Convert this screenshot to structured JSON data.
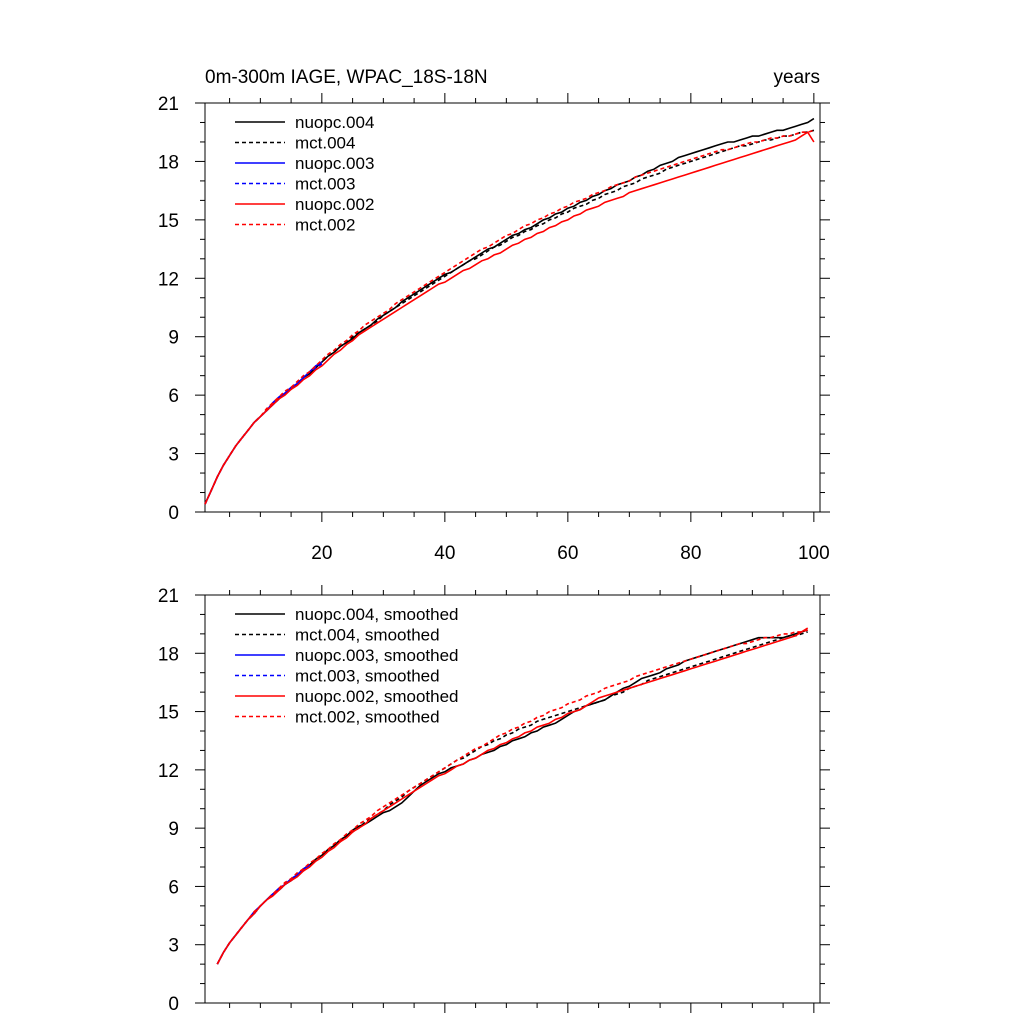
{
  "chart_data": [
    {
      "type": "line",
      "title": "0m-300m IAGE, WPAC_18S-18N",
      "right_title": "years",
      "xlim": [
        1,
        101
      ],
      "ylim": [
        0,
        21
      ],
      "xticks": [
        20,
        40,
        60,
        80,
        100
      ],
      "yticks": [
        0,
        3,
        6,
        9,
        12,
        15,
        18,
        21
      ],
      "show_xtick_labels": true,
      "legend": [
        "nuopc.004",
        "mct.004",
        "nuopc.003",
        "mct.003",
        "nuopc.002",
        "mct.002"
      ],
      "series": [
        {
          "name": "nuopc.004",
          "color": "#000000",
          "dash": "solid",
          "x_start": 1,
          "values": [
            0.4,
            1.1,
            1.8,
            2.4,
            2.9,
            3.4,
            3.8,
            4.2,
            4.6,
            4.9,
            5.2,
            5.5,
            5.8,
            6.1,
            6.3,
            6.6,
            6.9,
            7.1,
            7.4,
            7.7,
            8.0,
            8.2,
            8.5,
            8.7,
            8.9,
            9.2,
            9.4,
            9.6,
            9.9,
            10.1,
            10.3,
            10.5,
            10.8,
            11.0,
            11.2,
            11.4,
            11.6,
            11.8,
            12.0,
            12.2,
            12.3,
            12.5,
            12.7,
            12.9,
            13.1,
            13.3,
            13.5,
            13.6,
            13.8,
            14.0,
            14.2,
            14.3,
            14.5,
            14.6,
            14.8,
            15.0,
            15.1,
            15.3,
            15.4,
            15.6,
            15.7,
            15.9,
            16.0,
            16.2,
            16.3,
            16.5,
            16.6,
            16.8,
            16.9,
            17.0,
            17.2,
            17.3,
            17.5,
            17.6,
            17.8,
            17.9,
            18.0,
            18.2,
            18.3,
            18.4,
            18.5,
            18.6,
            18.7,
            18.8,
            18.9,
            19.0,
            19.0,
            19.1,
            19.2,
            19.3,
            19.3,
            19.4,
            19.5,
            19.6,
            19.6,
            19.7,
            19.8,
            19.9,
            20.0,
            20.2
          ]
        },
        {
          "name": "mct.004",
          "color": "#000000",
          "dash": "dashed",
          "x_start": 1,
          "values": [
            0.4,
            1.1,
            1.8,
            2.4,
            2.9,
            3.4,
            3.8,
            4.2,
            4.6,
            4.9,
            5.2,
            5.5,
            5.8,
            6.1,
            6.4,
            6.6,
            6.9,
            7.2,
            7.4,
            7.7,
            8.0,
            8.2,
            8.5,
            8.7,
            9.0,
            9.2,
            9.4,
            9.6,
            9.8,
            10.1,
            10.3,
            10.5,
            10.7,
            10.9,
            11.1,
            11.3,
            11.5,
            11.7,
            11.9,
            12.1,
            12.3,
            12.5,
            12.7,
            12.9,
            13.0,
            13.2,
            13.4,
            13.6,
            13.7,
            13.9,
            14.1,
            14.2,
            14.4,
            14.5,
            14.7,
            14.8,
            15.0,
            15.1,
            15.3,
            15.4,
            15.6,
            15.7,
            15.8,
            16.0,
            16.1,
            16.3,
            16.4,
            16.5,
            16.7,
            16.8,
            16.9,
            17.1,
            17.2,
            17.3,
            17.4,
            17.6,
            17.7,
            17.8,
            17.9,
            18.0,
            18.1,
            18.2,
            18.3,
            18.4,
            18.5,
            18.6,
            18.7,
            18.8,
            18.8,
            18.9,
            19.0,
            19.1,
            19.1,
            19.2,
            19.3,
            19.3,
            19.4,
            19.5,
            19.5,
            19.6
          ]
        },
        {
          "name": "nuopc.003",
          "color": "#0000ff",
          "dash": "solid",
          "x_start": 1,
          "values": [
            0.4,
            1.1,
            1.8,
            2.4,
            2.9,
            3.4,
            3.8,
            4.2,
            4.6,
            4.9,
            5.2,
            5.6,
            5.9,
            6.1,
            6.4,
            6.6,
            6.9,
            7.2,
            7.5,
            7.7
          ]
        },
        {
          "name": "mct.003",
          "color": "#0000ff",
          "dash": "dashed",
          "x_start": 1,
          "values": [
            0.4,
            1.1,
            1.8,
            2.4,
            2.9,
            3.4,
            3.8,
            4.2,
            4.6,
            4.9,
            5.2,
            5.5,
            5.8,
            6.1,
            6.3,
            6.6,
            6.9,
            7.2,
            7.4,
            7.6
          ]
        },
        {
          "name": "nuopc.002",
          "color": "#ff0000",
          "dash": "solid",
          "x_start": 1,
          "values": [
            0.4,
            1.1,
            1.8,
            2.4,
            2.9,
            3.4,
            3.8,
            4.2,
            4.6,
            4.9,
            5.2,
            5.5,
            5.8,
            6.0,
            6.3,
            6.5,
            6.8,
            7.0,
            7.3,
            7.5,
            7.8,
            8.1,
            8.3,
            8.6,
            8.8,
            9.1,
            9.3,
            9.5,
            9.7,
            9.9,
            10.1,
            10.3,
            10.5,
            10.7,
            10.9,
            11.1,
            11.3,
            11.5,
            11.7,
            11.8,
            12.0,
            12.2,
            12.4,
            12.5,
            12.7,
            12.9,
            13.0,
            13.2,
            13.3,
            13.5,
            13.7,
            13.8,
            14.0,
            14.1,
            14.3,
            14.4,
            14.6,
            14.7,
            14.9,
            15.0,
            15.2,
            15.3,
            15.5,
            15.6,
            15.7,
            15.9,
            16.0,
            16.1,
            16.2,
            16.4,
            16.5,
            16.6,
            16.7,
            16.8,
            16.9,
            17.0,
            17.1,
            17.2,
            17.3,
            17.4,
            17.5,
            17.6,
            17.7,
            17.8,
            17.9,
            18.0,
            18.1,
            18.2,
            18.3,
            18.4,
            18.5,
            18.6,
            18.7,
            18.8,
            18.9,
            19.0,
            19.1,
            19.3,
            19.5,
            19.0
          ]
        },
        {
          "name": "mct.002",
          "color": "#ff0000",
          "dash": "dashed",
          "x_start": 1,
          "values": [
            0.4,
            1.1,
            1.8,
            2.4,
            2.9,
            3.4,
            3.8,
            4.2,
            4.6,
            4.9,
            5.3,
            5.6,
            5.9,
            6.2,
            6.4,
            6.7,
            7.0,
            7.2,
            7.5,
            7.8,
            8.1,
            8.3,
            8.6,
            8.8,
            9.1,
            9.3,
            9.6,
            9.8,
            10.0,
            10.2,
            10.4,
            10.7,
            10.9,
            11.1,
            11.3,
            11.5,
            11.7,
            11.9,
            12.1,
            12.3,
            12.5,
            12.7,
            12.9,
            13.1,
            13.3,
            13.5,
            13.6,
            13.8,
            14.0,
            14.2,
            14.3,
            14.5,
            14.7,
            14.8,
            15.0,
            15.1,
            15.3,
            15.4,
            15.6,
            15.7,
            15.9,
            16.0,
            16.1,
            16.3,
            16.4,
            16.5,
            16.7,
            16.8,
            16.9,
            17.0,
            17.2,
            17.3,
            17.4,
            17.5,
            17.6,
            17.7,
            17.8,
            17.9,
            18.0,
            18.1,
            18.2,
            18.3,
            18.4,
            18.5,
            18.6,
            18.6,
            18.7,
            18.8,
            18.9,
            19.0,
            19.0,
            19.1,
            19.2,
            19.2,
            19.3,
            19.3,
            19.4,
            19.5,
            19.5,
            19.6
          ]
        }
      ]
    },
    {
      "type": "line",
      "title": "",
      "right_title": "",
      "xlim": [
        1,
        101
      ],
      "ylim": [
        0,
        21
      ],
      "xticks": [
        20,
        40,
        60,
        80,
        100
      ],
      "yticks": [
        0,
        3,
        6,
        9,
        12,
        15,
        18,
        21
      ],
      "show_xtick_labels": false,
      "legend": [
        "nuopc.004, smoothed",
        "mct.004, smoothed",
        "nuopc.003, smoothed",
        "mct.003, smoothed",
        "nuopc.002, smoothed",
        "mct.002, smoothed"
      ],
      "series": [
        {
          "name": "nuopc.004, smoothed",
          "color": "#000000",
          "dash": "solid",
          "x_start": 3,
          "values": [
            2.0,
            2.6,
            3.1,
            3.5,
            3.9,
            4.3,
            4.6,
            5.0,
            5.3,
            5.6,
            5.8,
            6.1,
            6.3,
            6.6,
            6.9,
            7.1,
            7.4,
            7.6,
            7.9,
            8.1,
            8.4,
            8.6,
            8.9,
            9.1,
            9.2,
            9.4,
            9.6,
            9.8,
            9.9,
            10.1,
            10.3,
            10.6,
            10.9,
            11.2,
            11.4,
            11.6,
            11.8,
            11.9,
            12.1,
            12.2,
            12.3,
            12.5,
            12.6,
            12.8,
            12.9,
            13.0,
            13.2,
            13.3,
            13.5,
            13.6,
            13.7,
            13.9,
            14.0,
            14.2,
            14.3,
            14.4,
            14.6,
            14.8,
            15.0,
            15.1,
            15.3,
            15.4,
            15.5,
            15.6,
            15.8,
            16.0,
            16.2,
            16.3,
            16.5,
            16.7,
            16.8,
            16.9,
            17.0,
            17.2,
            17.3,
            17.4,
            17.6,
            17.7,
            17.8,
            17.9,
            18.0,
            18.1,
            18.2,
            18.3,
            18.4,
            18.5,
            18.6,
            18.7,
            18.8,
            18.8,
            18.8,
            18.8,
            18.8,
            18.9,
            19.0,
            19.1,
            19.2
          ]
        },
        {
          "name": "mct.004, smoothed",
          "color": "#000000",
          "dash": "dashed",
          "x_start": 3,
          "values": [
            2.0,
            2.6,
            3.1,
            3.5,
            3.9,
            4.3,
            4.6,
            5.0,
            5.3,
            5.6,
            5.8,
            6.1,
            6.3,
            6.6,
            6.9,
            7.1,
            7.4,
            7.6,
            7.9,
            8.1,
            8.3,
            8.6,
            8.8,
            9.0,
            9.3,
            9.5,
            9.7,
            9.9,
            10.2,
            10.4,
            10.6,
            10.9,
            11.1,
            11.3,
            11.5,
            11.7,
            11.9,
            12.1,
            12.3,
            12.5,
            12.6,
            12.8,
            13.0,
            13.2,
            13.3,
            13.5,
            13.6,
            13.8,
            13.9,
            14.1,
            14.2,
            14.3,
            14.5,
            14.6,
            14.7,
            14.8,
            14.9,
            15.0,
            15.1,
            15.2,
            15.3,
            15.4,
            15.5,
            15.6,
            15.8,
            15.9,
            16.0,
            16.2,
            16.3,
            16.4,
            16.6,
            16.7,
            16.8,
            16.9,
            17.0,
            17.1,
            17.2,
            17.3,
            17.4,
            17.5,
            17.6,
            17.7,
            17.8,
            17.9,
            18.0,
            18.1,
            18.2,
            18.3,
            18.4,
            18.5,
            18.6,
            18.7,
            18.8,
            18.9,
            18.9,
            19.0,
            19.1
          ]
        },
        {
          "name": "nuopc.003, smoothed",
          "color": "#0000ff",
          "dash": "solid",
          "x_start": 3,
          "values": [
            2.0,
            2.6,
            3.1,
            3.5,
            3.9,
            4.3,
            4.7,
            5.0,
            5.3,
            5.6,
            5.9,
            6.1,
            6.4,
            6.6,
            6.9,
            7.1
          ]
        },
        {
          "name": "mct.003, smoothed",
          "color": "#0000ff",
          "dash": "dashed",
          "x_start": 3,
          "values": [
            2.0,
            2.6,
            3.1,
            3.5,
            3.9,
            4.3,
            4.6,
            5.0,
            5.3,
            5.6,
            5.8,
            6.1,
            6.3,
            6.6,
            6.8,
            7.1
          ]
        },
        {
          "name": "nuopc.002, smoothed",
          "color": "#ff0000",
          "dash": "solid",
          "x_start": 3,
          "values": [
            2.0,
            2.6,
            3.1,
            3.5,
            3.9,
            4.3,
            4.6,
            5.0,
            5.3,
            5.5,
            5.8,
            6.1,
            6.3,
            6.5,
            6.8,
            7.0,
            7.3,
            7.5,
            7.8,
            8.0,
            8.3,
            8.5,
            8.8,
            9.0,
            9.2,
            9.5,
            9.7,
            9.9,
            10.1,
            10.3,
            10.5,
            10.7,
            10.9,
            11.1,
            11.3,
            11.5,
            11.7,
            11.8,
            12.0,
            12.2,
            12.3,
            12.5,
            12.6,
            12.8,
            13.0,
            13.1,
            13.3,
            13.4,
            13.6,
            13.7,
            13.9,
            14.0,
            14.2,
            14.3,
            14.4,
            14.6,
            14.7,
            14.9,
            15.0,
            15.1,
            15.3,
            15.5,
            15.7,
            15.8,
            15.9,
            16.0,
            16.1,
            16.2,
            16.3,
            16.4,
            16.5,
            16.6,
            16.7,
            16.8,
            16.9,
            17.0,
            17.1,
            17.2,
            17.3,
            17.4,
            17.5,
            17.6,
            17.7,
            17.8,
            17.9,
            18.0,
            18.1,
            18.2,
            18.3,
            18.4,
            18.5,
            18.6,
            18.7,
            18.8,
            18.9,
            19.1,
            19.3
          ]
        },
        {
          "name": "mct.002, smoothed",
          "color": "#ff0000",
          "dash": "dashed",
          "x_start": 3,
          "values": [
            2.0,
            2.6,
            3.1,
            3.5,
            3.9,
            4.3,
            4.7,
            5.0,
            5.3,
            5.6,
            5.9,
            6.2,
            6.4,
            6.7,
            6.9,
            7.2,
            7.4,
            7.7,
            7.9,
            8.2,
            8.4,
            8.7,
            8.9,
            9.2,
            9.4,
            9.6,
            9.9,
            10.1,
            10.3,
            10.5,
            10.7,
            10.9,
            11.1,
            11.3,
            11.5,
            11.7,
            11.9,
            12.1,
            12.3,
            12.5,
            12.7,
            12.9,
            13.1,
            13.2,
            13.4,
            13.6,
            13.8,
            13.9,
            14.1,
            14.2,
            14.4,
            14.5,
            14.7,
            14.8,
            15.0,
            15.1,
            15.2,
            15.4,
            15.5,
            15.6,
            15.8,
            15.9,
            16.0,
            16.2,
            16.3,
            16.4,
            16.5,
            16.6,
            16.8,
            16.9,
            17.0,
            17.1,
            17.2,
            17.3,
            17.4,
            17.5,
            17.6,
            17.7,
            17.8,
            17.9,
            18.0,
            18.1,
            18.2,
            18.3,
            18.4,
            18.5,
            18.5,
            18.6,
            18.7,
            18.8,
            18.8,
            18.9,
            19.0,
            19.0,
            19.1,
            19.1,
            19.2
          ]
        }
      ]
    }
  ]
}
